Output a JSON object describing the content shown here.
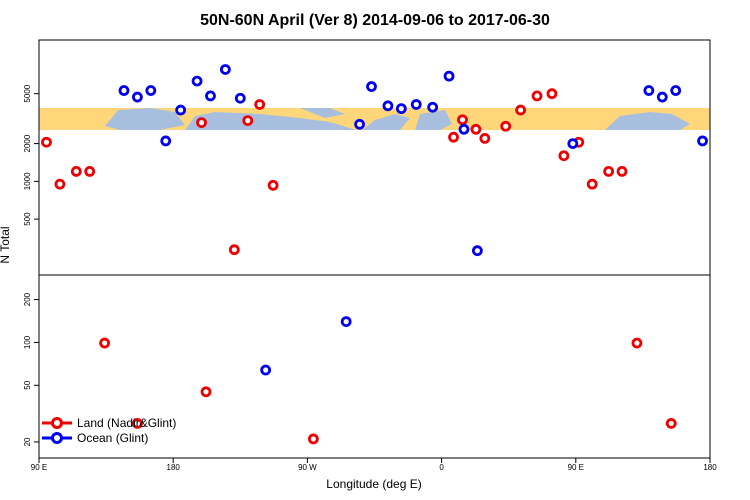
{
  "chart_data": {
    "type": "scatter",
    "title": "50N-60N April (Ver 8)   2014-09-06 to 2017-06-30",
    "xlabel": "Longitude (deg E)",
    "ylabel": "N Total",
    "x_ticks": [
      90,
      180,
      270,
      360,
      450,
      540
    ],
    "x_tick_labels": [
      "90 E",
      "180",
      "90 W",
      "0",
      "90 E",
      "180"
    ],
    "xlim": [
      90,
      540
    ],
    "upper_panel": {
      "y_scale": "log",
      "ylim": [
        200,
        12000
      ],
      "y_ticks": [
        500,
        1000,
        2000,
        5000
      ],
      "y_tick_labels": [
        "500",
        "1000",
        "2000",
        "5000"
      ]
    },
    "lower_panel": {
      "y_scale": "log",
      "ylim": [
        17,
        270
      ],
      "y_ticks": [
        20,
        50,
        100,
        200
      ],
      "y_tick_labels": [
        "20",
        "50",
        "100",
        "200"
      ]
    },
    "map_strip": {
      "land_color": "#ffd77a",
      "ocean_color": "#a8bedf"
    },
    "series": [
      {
        "name": "Land (Nadir&Glint)",
        "color": "#ee0000",
        "points": [
          {
            "x": 95,
            "y": 2050
          },
          {
            "x": 104,
            "y": 950
          },
          {
            "x": 115,
            "y": 1200
          },
          {
            "x": 124,
            "y": 1200
          },
          {
            "x": 199,
            "y": 2940
          },
          {
            "x": 221,
            "y": 285
          },
          {
            "x": 230,
            "y": 3050
          },
          {
            "x": 238,
            "y": 4100
          },
          {
            "x": 247,
            "y": 930
          },
          {
            "x": 368,
            "y": 2250
          },
          {
            "x": 374,
            "y": 3100
          },
          {
            "x": 383,
            "y": 2600
          },
          {
            "x": 389,
            "y": 2200
          },
          {
            "x": 403,
            "y": 2750
          },
          {
            "x": 413,
            "y": 3700
          },
          {
            "x": 424,
            "y": 4800
          },
          {
            "x": 434,
            "y": 5000
          },
          {
            "x": 442,
            "y": 1600
          },
          {
            "x": 452,
            "y": 2050
          },
          {
            "x": 461,
            "y": 950
          },
          {
            "x": 472,
            "y": 1200
          },
          {
            "x": 481,
            "y": 1200
          },
          {
            "x": 134,
            "y": 99
          },
          {
            "x": 156,
            "y": 27
          },
          {
            "x": 202,
            "y": 45
          },
          {
            "x": 274,
            "y": 21
          },
          {
            "x": 491,
            "y": 99
          },
          {
            "x": 514,
            "y": 27
          }
        ]
      },
      {
        "name": "Ocean (Glint)",
        "color": "#0000ee",
        "points": [
          {
            "x": 147,
            "y": 5300
          },
          {
            "x": 156,
            "y": 4700
          },
          {
            "x": 165,
            "y": 5300
          },
          {
            "x": 175,
            "y": 2100
          },
          {
            "x": 185,
            "y": 3700
          },
          {
            "x": 196,
            "y": 6300
          },
          {
            "x": 205,
            "y": 4800
          },
          {
            "x": 215,
            "y": 7800
          },
          {
            "x": 225,
            "y": 4600
          },
          {
            "x": 305,
            "y": 2850
          },
          {
            "x": 313,
            "y": 5700
          },
          {
            "x": 324,
            "y": 4000
          },
          {
            "x": 333,
            "y": 3800
          },
          {
            "x": 343,
            "y": 4100
          },
          {
            "x": 354,
            "y": 3900
          },
          {
            "x": 365,
            "y": 6900
          },
          {
            "x": 375,
            "y": 2600
          },
          {
            "x": 448,
            "y": 2000
          },
          {
            "x": 499,
            "y": 5300
          },
          {
            "x": 508,
            "y": 4700
          },
          {
            "x": 517,
            "y": 5300
          },
          {
            "x": 535,
            "y": 2100
          },
          {
            "x": 384,
            "y": 280
          },
          {
            "x": 242,
            "y": 64
          },
          {
            "x": 296,
            "y": 140
          }
        ]
      }
    ],
    "legend": {
      "position": "bottom-left",
      "entries": [
        "Land (Nadir&Glint)",
        "Ocean (Glint)"
      ]
    }
  }
}
